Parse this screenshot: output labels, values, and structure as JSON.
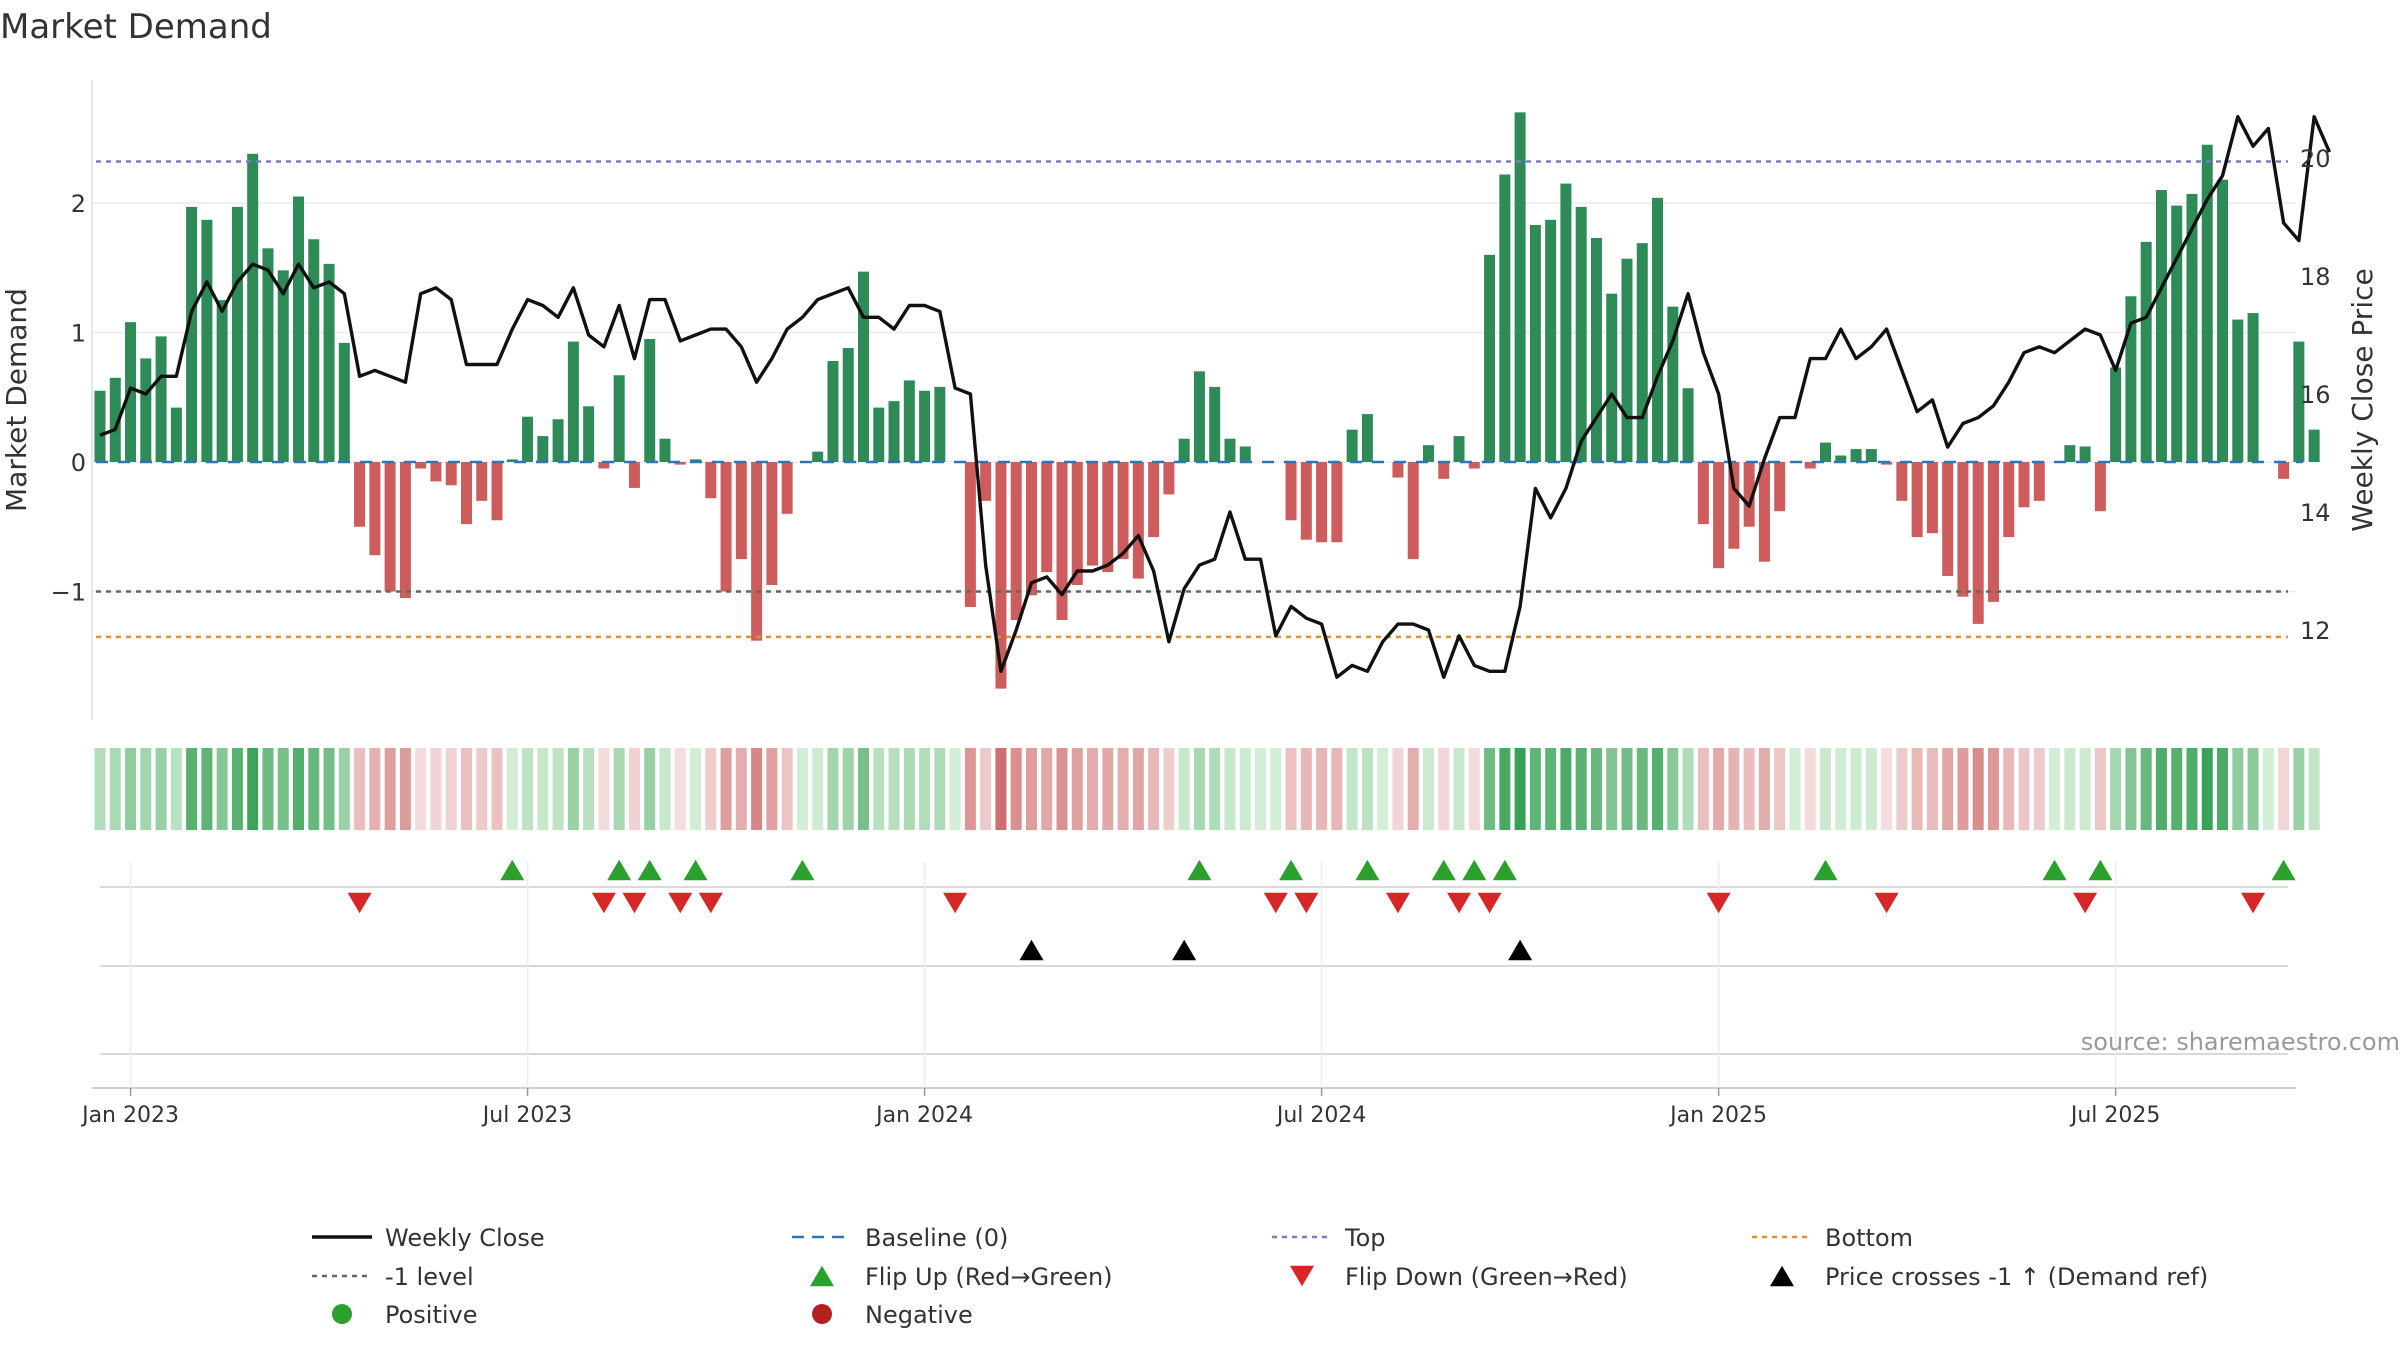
{
  "chart_data": {
    "type": "bar",
    "title": "Market Demand",
    "ylabel": "Market Demand",
    "y2label": "Weekly Close Price",
    "ylim": [
      -2.0,
      2.9
    ],
    "y2lim": [
      10.8,
      21.6
    ],
    "yticks": [
      -1,
      0,
      1,
      2
    ],
    "y2ticks": [
      12,
      14,
      16,
      18,
      20
    ],
    "ytick_labels": [
      "−1",
      "0",
      "1",
      "2"
    ],
    "y2tick_labels": [
      "12",
      "14",
      "16",
      "18",
      "20"
    ],
    "x_tick_labels": [
      "Jan 2023",
      "Jul 2023",
      "Jan 2024",
      "Jul 2024",
      "Jan 2025",
      "Jul 2025"
    ],
    "x_tick_weeks": [
      2,
      28,
      54,
      80,
      106,
      132
    ],
    "levels": {
      "top": 2.32,
      "minus_one": -1.0,
      "bottom": -1.35,
      "baseline": 0
    },
    "weeks": 145,
    "demand": [
      0.55,
      0.65,
      1.08,
      0.8,
      0.97,
      0.42,
      1.97,
      1.87,
      1.25,
      1.97,
      2.38,
      1.65,
      1.48,
      2.05,
      1.72,
      1.53,
      0.92,
      -0.5,
      -0.72,
      -1.0,
      -1.05,
      -0.05,
      -0.15,
      -0.18,
      -0.48,
      -0.3,
      -0.45,
      0.02,
      0.35,
      0.2,
      0.33,
      0.93,
      0.43,
      -0.05,
      0.67,
      -0.2,
      0.95,
      0.18,
      -0.02,
      0.02,
      -0.28,
      -1.0,
      -0.75,
      -1.38,
      -0.95,
      -0.4,
      0.0,
      0.08,
      0.78,
      0.88,
      1.47,
      0.42,
      0.47,
      0.63,
      0.55,
      0.58,
      0.0,
      -1.12,
      -0.3,
      -1.75,
      -1.22,
      -1.03,
      -0.85,
      -1.22,
      -0.95,
      -0.8,
      -0.85,
      -0.75,
      -0.9,
      -0.58,
      -0.25,
      0.18,
      0.7,
      0.58,
      0.18,
      0.12,
      0.0,
      0.0,
      -0.45,
      -0.6,
      -0.62,
      -0.62,
      0.25,
      0.37,
      0.0,
      -0.12,
      -0.75,
      0.13,
      -0.13,
      0.2,
      -0.05,
      1.6,
      2.22,
      2.7,
      1.83,
      1.87,
      2.15,
      1.97,
      1.73,
      1.3,
      1.57,
      1.69,
      2.04,
      1.2,
      0.57,
      -0.48,
      -0.82,
      -0.67,
      -0.5,
      -0.77,
      -0.38,
      0.0,
      -0.05,
      0.15,
      0.05,
      0.1,
      0.1,
      -0.02,
      -0.3,
      -0.58,
      -0.55,
      -0.88,
      -1.04,
      -1.25,
      -1.08,
      -0.58,
      -0.35,
      -0.3,
      0.0,
      0.13,
      0.12,
      -0.38,
      0.73,
      1.28,
      1.7,
      2.1,
      1.98,
      2.07,
      2.45,
      2.18,
      1.1,
      1.15,
      0.0,
      -0.13,
      0.93,
      0.25
    ],
    "price": [
      15.3,
      15.4,
      16.1,
      16.0,
      16.3,
      16.3,
      17.4,
      17.9,
      17.4,
      17.9,
      18.2,
      18.1,
      17.7,
      18.2,
      17.8,
      17.9,
      17.7,
      16.3,
      16.4,
      16.3,
      16.2,
      17.7,
      17.8,
      17.6,
      16.5,
      16.5,
      16.5,
      17.1,
      17.6,
      17.5,
      17.3,
      17.8,
      17.0,
      16.8,
      17.5,
      16.6,
      17.6,
      17.6,
      16.9,
      17.0,
      17.1,
      17.1,
      16.8,
      16.2,
      16.6,
      17.1,
      17.3,
      17.6,
      17.7,
      17.8,
      17.3,
      17.3,
      17.1,
      17.5,
      17.5,
      17.4,
      16.1,
      16.0,
      13.1,
      11.3,
      12.0,
      12.8,
      12.9,
      12.6,
      13.0,
      13.0,
      13.1,
      13.3,
      13.6,
      13.0,
      11.8,
      12.7,
      13.1,
      13.2,
      14.0,
      13.2,
      13.2,
      11.9,
      12.4,
      12.2,
      12.1,
      11.2,
      11.4,
      11.3,
      11.8,
      12.1,
      12.1,
      12.0,
      11.2,
      11.9,
      11.4,
      11.3,
      11.3,
      12.4,
      14.4,
      13.9,
      14.4,
      15.2,
      15.6,
      16.0,
      15.6,
      15.6,
      16.3,
      16.9,
      17.7,
      16.7,
      16.0,
      14.4,
      14.1,
      14.9,
      15.6,
      15.6,
      16.6,
      16.6,
      17.1,
      16.6,
      16.8,
      17.1,
      16.4,
      15.7,
      15.9,
      15.1,
      15.5,
      15.6,
      15.8,
      16.2,
      16.7,
      16.8,
      16.7,
      16.9,
      17.1,
      17.0,
      16.4,
      17.2,
      17.3,
      17.8,
      18.3,
      18.8,
      19.3,
      19.7,
      20.7,
      20.2,
      20.5,
      18.9,
      18.6,
      20.7,
      20.1
    ],
    "flip_up_weeks": [
      27,
      34,
      36,
      39,
      46,
      72,
      78,
      83,
      88,
      90,
      92,
      113,
      128,
      131,
      143
    ],
    "flip_down_weeks": [
      17,
      33,
      35,
      38,
      40,
      56,
      77,
      79,
      85,
      89,
      91,
      106,
      117,
      130,
      141
    ],
    "price_cross_weeks": [
      61,
      71,
      93
    ],
    "source_note": "source: sharemaestro.com",
    "legend_position": "bottom",
    "legend": [
      {
        "label": "Weekly Close",
        "symbol": "line-solid",
        "color": "#111111"
      },
      {
        "label": "Baseline (0)",
        "symbol": "line-dashed",
        "color": "#2e75b6"
      },
      {
        "label": "Top",
        "symbol": "line-dotted",
        "color": "#7b7bc8"
      },
      {
        "label": "Bottom",
        "symbol": "line-dotted",
        "color": "#e0902f"
      },
      {
        "label": "-1 level",
        "symbol": "line-dotted",
        "color": "#666666"
      },
      {
        "label": "Flip Up (Red→Green)",
        "symbol": "triangle-up",
        "color": "#2ca02c"
      },
      {
        "label": "Flip Down (Green→Red)",
        "symbol": "triangle-down",
        "color": "#d62728"
      },
      {
        "label": "Price crosses -1 ↑ (Demand ref)",
        "symbol": "triangle-up",
        "color": "#000000"
      },
      {
        "label": "Positive",
        "symbol": "circle",
        "color": "#2ca02c"
      },
      {
        "label": "Negative",
        "symbol": "circle",
        "color": "#b22222"
      }
    ],
    "colors": {
      "positive": "#2e8b57",
      "negative": "#cd5c5c",
      "price_line": "#111111",
      "baseline": "#2e75b6",
      "top": "#7b7bc8",
      "bottom": "#e0902f",
      "minus_one": "#666666",
      "flip_up": "#2ca02c",
      "flip_down": "#d62728",
      "price_cross": "#000000"
    }
  }
}
